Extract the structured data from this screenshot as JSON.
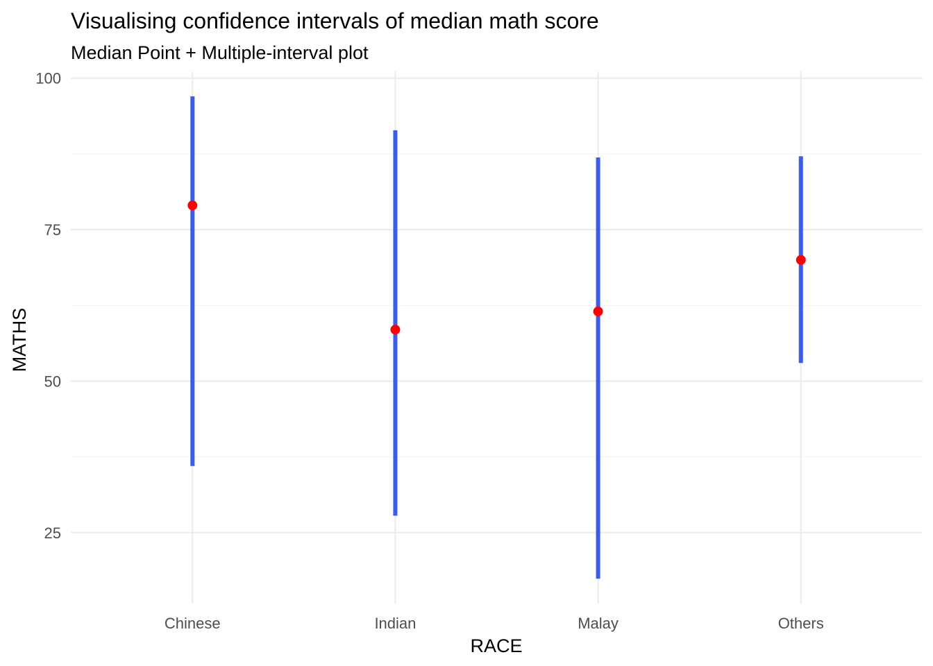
{
  "chart_data": {
    "type": "pointrange",
    "title": "Visualising confidence intervals of median math score",
    "subtitle": "Median Point + Multiple-interval plot",
    "xlabel": "RACE",
    "ylabel": "MATHS",
    "categories": [
      "Chinese",
      "Indian",
      "Malay",
      "Others"
    ],
    "median": [
      79,
      58.5,
      61.5,
      70
    ],
    "interval_low": [
      36,
      27.8,
      17.4,
      53
    ],
    "interval_high": [
      97,
      91.4,
      86.9,
      87.1
    ],
    "yticks": [
      25,
      50,
      75,
      100
    ],
    "ytick_labels": [
      "25",
      "50",
      "75",
      "100"
    ],
    "ylim": [
      13.3,
      101.1
    ],
    "grid": true,
    "interval_color": "#3a5ce8",
    "point_color": "#ff0000"
  }
}
